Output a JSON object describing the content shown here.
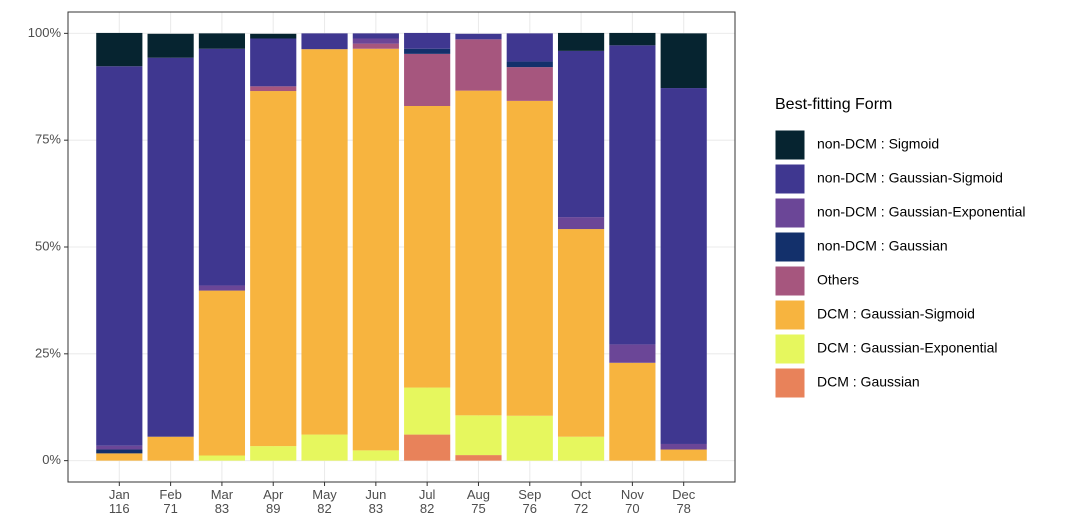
{
  "chart_data": {
    "type": "stacked_bar_percent",
    "categories": [
      "Jan\n116",
      "Feb\n71",
      "Mar\n83",
      "Apr\n89",
      "May\n82",
      "Jun\n83",
      "Jul\n82",
      "Aug\n75",
      "Sep\n76",
      "Oct\n72",
      "Nov\n70",
      "Dec\n78"
    ],
    "ylim": [
      -5,
      105
    ],
    "yticks": [
      {
        "value": 0,
        "label": "0%"
      },
      {
        "value": 25,
        "label": "25%"
      },
      {
        "value": 50,
        "label": "50%"
      },
      {
        "value": 75,
        "label": "75%"
      },
      {
        "value": 100,
        "label": "100%"
      }
    ],
    "grid": true,
    "legend": {
      "title": "Best-fitting Form",
      "position": "right"
    },
    "series": [
      {
        "name": "DCM : Gaussian",
        "color": "#e8825a",
        "values": [
          0,
          0,
          0,
          0,
          0,
          0,
          6.1,
          1.3,
          0,
          0,
          0,
          0
        ]
      },
      {
        "name": "DCM : Gaussian-Exponential",
        "color": "#e6f75e",
        "values": [
          0,
          0,
          1.2,
          3.4,
          6.1,
          2.4,
          11.0,
          9.3,
          10.5,
          5.6,
          0,
          0
        ]
      },
      {
        "name": "DCM : Gaussian-Sigmoid",
        "color": "#f7b43f",
        "values": [
          1.7,
          5.6,
          38.6,
          83.1,
          90.2,
          94.0,
          65.9,
          76.0,
          73.7,
          48.6,
          22.9,
          2.6
        ]
      },
      {
        "name": "Others",
        "color": "#a6567e",
        "values": [
          0,
          0,
          0,
          1.1,
          0,
          1.2,
          12.2,
          12.0,
          7.9,
          0,
          0,
          0
        ]
      },
      {
        "name": "non-DCM : Gaussian",
        "color": "#13306b",
        "values": [
          0.9,
          0,
          0,
          0,
          0,
          0,
          1.2,
          0,
          1.3,
          0,
          0,
          0
        ]
      },
      {
        "name": "non-DCM : Gaussian-Exponential",
        "color": "#6b4697",
        "values": [
          0.9,
          0,
          1.2,
          0,
          0,
          1.2,
          0,
          0,
          0,
          2.8,
          4.3,
          1.3
        ]
      },
      {
        "name": "non-DCM : Gaussian-Sigmoid",
        "color": "#3f3790",
        "values": [
          88.8,
          88.7,
          55.4,
          11.2,
          3.7,
          1.2,
          3.7,
          1.3,
          6.6,
          38.9,
          70.0,
          83.3
        ]
      },
      {
        "name": "non-DCM : Sigmoid",
        "color": "#062430",
        "values": [
          7.8,
          5.6,
          3.6,
          1.1,
          0,
          0,
          0,
          0,
          0,
          4.2,
          2.9,
          12.8
        ]
      }
    ]
  }
}
